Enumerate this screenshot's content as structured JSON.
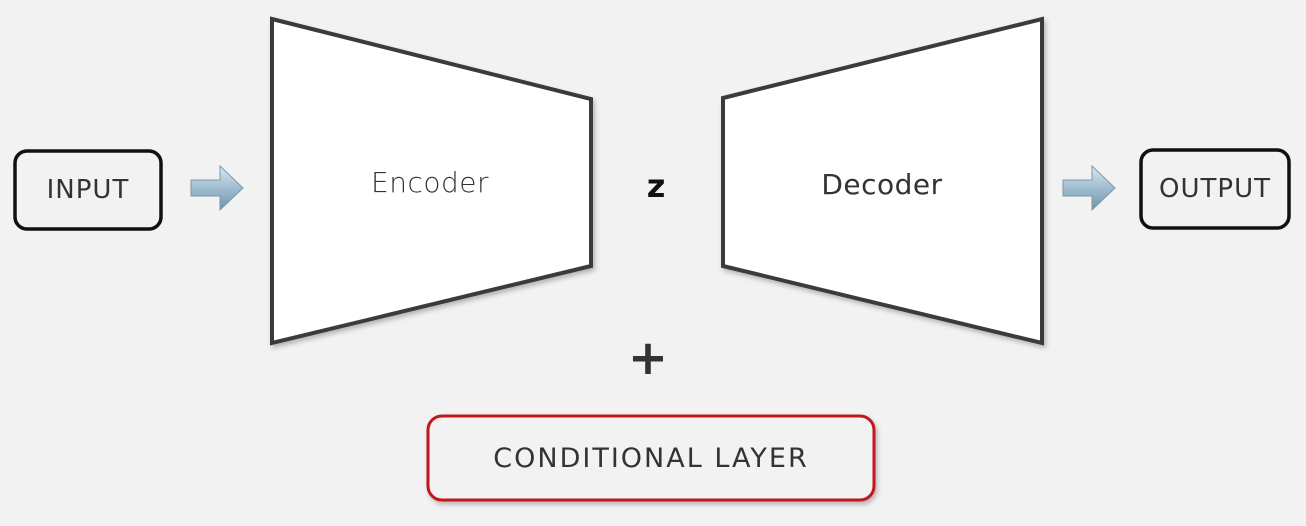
{
  "nodes": {
    "input": "INPUT",
    "encoder": "Encoder",
    "latent": "z",
    "decoder": "Decoder",
    "output": "OUTPUT",
    "plus": "+",
    "conditional": "CONDITIONAL LAYER"
  },
  "colors": {
    "background": "#f2f2f2",
    "box_stroke": "#111111",
    "trapezoid_stroke": "#3a3a3a",
    "conditional_stroke": "#c0181f",
    "arrow_fill": "#9fbdd0"
  }
}
